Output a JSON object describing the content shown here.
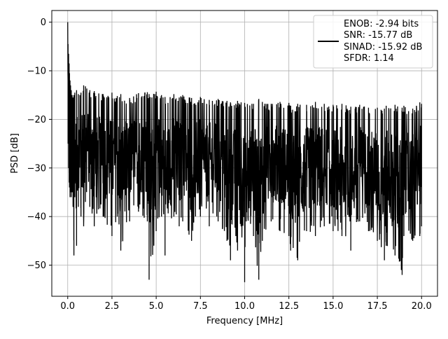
{
  "chart_data": {
    "type": "line",
    "xlabel": "Frequency [MHz]",
    "ylabel": "PSD [dB]",
    "xlim": [
      -0.9,
      20.9
    ],
    "ylim": [
      -56.4,
      2.4
    ],
    "xticks": [
      0.0,
      2.5,
      5.0,
      7.5,
      10.0,
      12.5,
      15.0,
      17.5,
      20.0
    ],
    "xtick_labels": [
      "0.0",
      "2.5",
      "5.0",
      "7.5",
      "10.0",
      "12.5",
      "15.0",
      "17.5",
      "20.0"
    ],
    "yticks": [
      0,
      -10,
      -20,
      -30,
      -40,
      -50
    ],
    "ytick_labels": [
      "0",
      "−10",
      "−20",
      "−30",
      "−40",
      "−50"
    ],
    "grid": true,
    "legend_position": "top-right",
    "legend_lines": [
      "ENOB: -2.94 bits",
      "SNR: -15.77 dB",
      "SINAD: -15.92 dB",
      "SFDR: 1.14"
    ],
    "series": [
      {
        "color": "#000000",
        "x": [
          0.0,
          0.02,
          0.05,
          0.08,
          0.1,
          0.13,
          0.16,
          0.2,
          0.25,
          0.3,
          0.35,
          0.4,
          0.5,
          0.6,
          0.75,
          0.9,
          1.0,
          1.25,
          1.5,
          2.0,
          2.5,
          2.8,
          3.0,
          3.5,
          4.0,
          4.5,
          4.6,
          5.0,
          5.3,
          5.5,
          6.0,
          6.3,
          6.5,
          7.0,
          7.5,
          8.0,
          8.5,
          9.0,
          9.2,
          9.5,
          9.6,
          9.8,
          10.0,
          10.5,
          10.8,
          11.0,
          11.5,
          12.0,
          12.5,
          12.6,
          13.0,
          13.5,
          14.0,
          14.5,
          15.0,
          15.5,
          16.0,
          16.5,
          17.0,
          17.5,
          17.9,
          18.0,
          18.5,
          18.9,
          19.0,
          19.5,
          19.9,
          20.0
        ],
        "y_upper": [
          0.0,
          -4.5,
          -6.5,
          -8.5,
          -10.5,
          -12.0,
          -13.0,
          -14.0,
          -15.0,
          -15.5,
          -15.0,
          -14.5,
          -14.0,
          -14.8,
          -14.5,
          -13.0,
          -13.2,
          -14.0,
          -14.2,
          -14.8,
          -14.5,
          -15.2,
          -14.8,
          -15.6,
          -14.6,
          -14.4,
          -14.8,
          -14.3,
          -15.0,
          -15.4,
          -14.8,
          -15.5,
          -15.0,
          -15.6,
          -15.4,
          -16.0,
          -15.8,
          -16.2,
          -16.5,
          -16.8,
          -16.2,
          -16.5,
          -16.6,
          -16.8,
          -15.8,
          -16.4,
          -16.8,
          -16.4,
          -16.6,
          -17.2,
          -16.8,
          -17.0,
          -16.4,
          -16.8,
          -17.0,
          -16.8,
          -17.4,
          -17.0,
          -17.6,
          -17.6,
          -17.8,
          -17.2,
          -17.0,
          -17.6,
          -17.2,
          -17.8,
          -16.5,
          -16.8
        ],
        "y_lower": [
          -17.0,
          -25.0,
          -30.0,
          -33.0,
          -34.0,
          -36.0,
          -35.0,
          -36.0,
          -35.0,
          -38.0,
          -48.0,
          -36.0,
          -46.0,
          -38.0,
          -40.0,
          -42.0,
          -37.0,
          -38.0,
          -42.0,
          -40.0,
          -44.0,
          -40.0,
          -47.0,
          -41.0,
          -39.0,
          -41.0,
          -53.0,
          -43.0,
          -40.0,
          -48.0,
          -40.0,
          -42.0,
          -41.0,
          -45.0,
          -40.0,
          -42.0,
          -41.0,
          -45.0,
          -49.0,
          -44.0,
          -47.0,
          -42.0,
          -53.5,
          -44.0,
          -53.0,
          -45.0,
          -41.0,
          -43.0,
          -44.0,
          -47.0,
          -49.0,
          -43.0,
          -44.0,
          -42.0,
          -43.0,
          -44.0,
          -47.0,
          -41.0,
          -43.0,
          -45.0,
          -49.0,
          -46.0,
          -48.0,
          -52.0,
          -44.0,
          -45.0,
          -44.0,
          -42.0
        ]
      }
    ]
  }
}
